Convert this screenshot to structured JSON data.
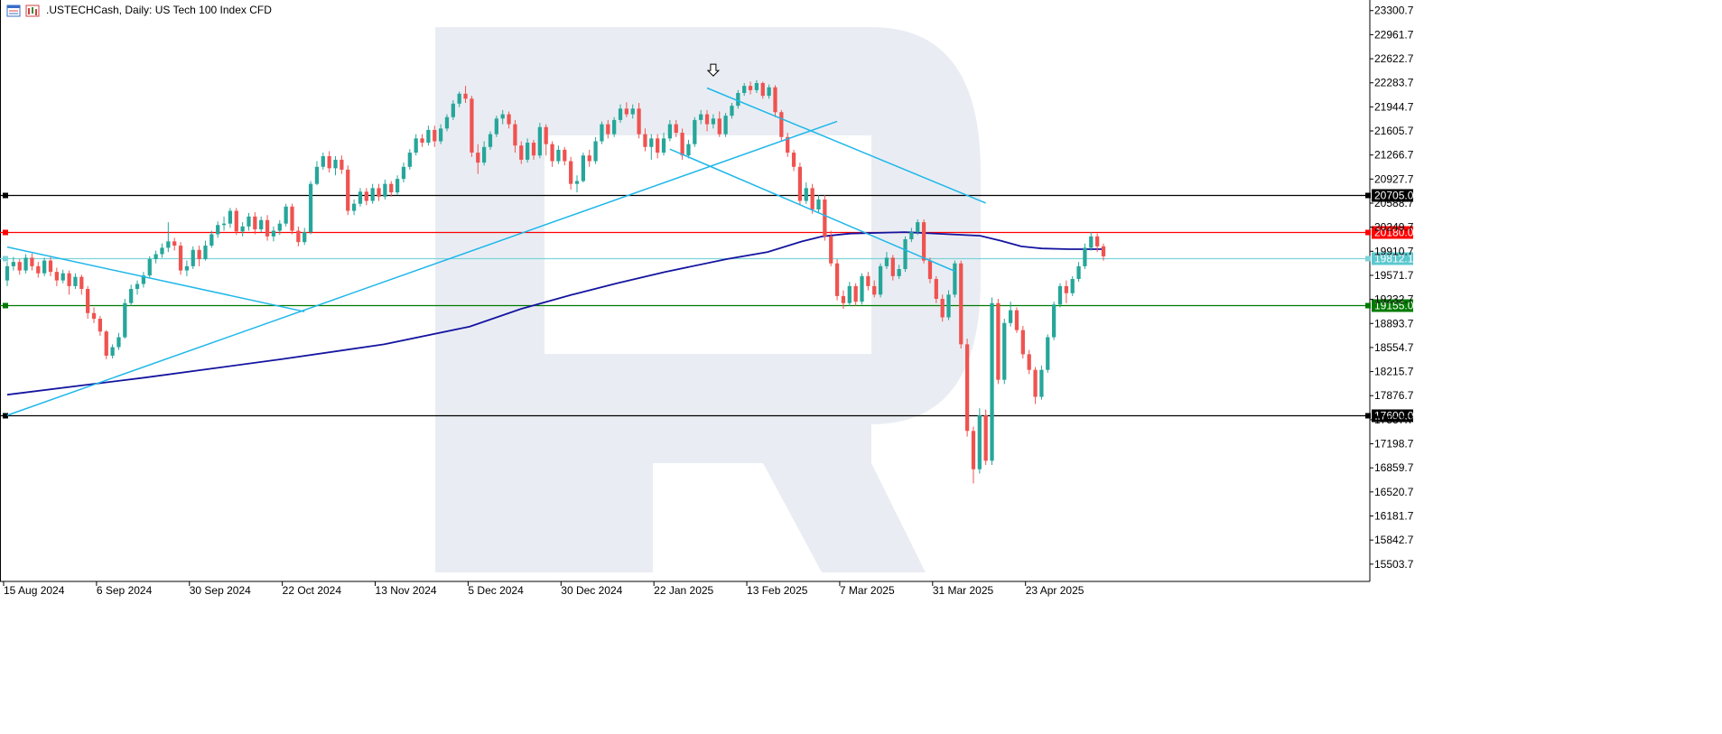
{
  "header": {
    "symbol": ".USTECHCash",
    "timeframe": "Daily",
    "title": ".USTECHCash, Daily:  US Tech 100 Index CFD",
    "icons": [
      "chart-window-icon",
      "chart-type-icon"
    ]
  },
  "chart_data": {
    "type": "candlestick",
    "y_ticks": [
      "23300.7",
      "22961.7",
      "22622.7",
      "22283.7",
      "21944.7",
      "21605.7",
      "21266.7",
      "20927.7",
      "20588.7",
      "20249.7",
      "19910.7",
      "19571.7",
      "19232.7",
      "18893.7",
      "18554.7",
      "18215.7",
      "17876.7",
      "17537.7",
      "17198.7",
      "16859.7",
      "16520.7",
      "16181.7",
      "15842.7",
      "15503.7"
    ],
    "x_ticks": [
      "15 Aug 2024",
      "6 Sep 2024",
      "30 Sep 2024",
      "22 Oct 2024",
      "13 Nov 2024",
      "5 Dec 2024",
      "30 Dec 2024",
      "22 Jan 2025",
      "13 Feb 2025",
      "7 Mar 2025",
      "31 Mar 2025",
      "23 Apr 2025"
    ],
    "ylim": [
      15260,
      23450
    ],
    "bullish_color": "#26a69a",
    "bearish_color": "#ef5350",
    "candles": [
      [
        19500,
        19700,
        19420,
        19760
      ],
      [
        19700,
        19760,
        19640,
        19830
      ],
      [
        19760,
        19640,
        19580,
        19800
      ],
      [
        19640,
        19820,
        19600,
        19870
      ],
      [
        19820,
        19700,
        19640,
        19880
      ],
      [
        19700,
        19600,
        19540,
        19760
      ],
      [
        19600,
        19780,
        19560,
        19820
      ],
      [
        19780,
        19620,
        19560,
        19830
      ],
      [
        19620,
        19500,
        19420,
        19680
      ],
      [
        19500,
        19600,
        19460,
        19650
      ],
      [
        19600,
        19420,
        19300,
        19640
      ],
      [
        19420,
        19550,
        19380,
        19600
      ],
      [
        19550,
        19380,
        19300,
        19580
      ],
      [
        19380,
        19040,
        18960,
        19420
      ],
      [
        19040,
        18960,
        18900,
        19120
      ],
      [
        18960,
        18780,
        18720,
        19000
      ],
      [
        18780,
        18440,
        18390,
        18800
      ],
      [
        18440,
        18560,
        18400,
        18600
      ],
      [
        18560,
        18700,
        18520,
        18760
      ],
      [
        18700,
        19180,
        18680,
        19240
      ],
      [
        19180,
        19380,
        19140,
        19440
      ],
      [
        19380,
        19450,
        19300,
        19500
      ],
      [
        19450,
        19570,
        19400,
        19620
      ],
      [
        19570,
        19800,
        19540,
        19840
      ],
      [
        19800,
        19870,
        19740,
        19920
      ],
      [
        19870,
        19960,
        19820,
        20020
      ],
      [
        19960,
        20050,
        19900,
        20320
      ],
      [
        20050,
        19990,
        19920,
        20100
      ],
      [
        19990,
        19640,
        19580,
        20040
      ],
      [
        19640,
        19700,
        19560,
        19780
      ],
      [
        19700,
        19930,
        19660,
        19980
      ],
      [
        19930,
        19800,
        19700,
        19990
      ],
      [
        19800,
        19990,
        19780,
        20060
      ],
      [
        19990,
        20150,
        19960,
        20200
      ],
      [
        20150,
        20280,
        20100,
        20330
      ],
      [
        20280,
        20300,
        20200,
        20400
      ],
      [
        20300,
        20480,
        20240,
        20520
      ],
      [
        20480,
        20190,
        20140,
        20520
      ],
      [
        20190,
        20260,
        20120,
        20320
      ],
      [
        20260,
        20400,
        20200,
        20450
      ],
      [
        20400,
        20220,
        20150,
        20460
      ],
      [
        20220,
        20350,
        20180,
        20400
      ],
      [
        20350,
        20120,
        20060,
        20420
      ],
      [
        20120,
        20200,
        20050,
        20260
      ],
      [
        20200,
        20300,
        20140,
        20350
      ],
      [
        20300,
        20540,
        20260,
        20580
      ],
      [
        20540,
        20200,
        20150,
        20580
      ],
      [
        20200,
        20040,
        19980,
        20260
      ],
      [
        20040,
        20180,
        20000,
        20240
      ],
      [
        20180,
        20860,
        20150,
        20900
      ],
      [
        20860,
        21100,
        20840,
        21180
      ],
      [
        21100,
        21250,
        21060,
        21300
      ],
      [
        21250,
        21080,
        21020,
        21320
      ],
      [
        21080,
        21200,
        20980,
        21250
      ],
      [
        21200,
        21060,
        21000,
        21260
      ],
      [
        21060,
        20480,
        20420,
        21120
      ],
      [
        20480,
        20580,
        20420,
        20640
      ],
      [
        20580,
        20750,
        20540,
        20800
      ],
      [
        20750,
        20620,
        20560,
        20800
      ],
      [
        20620,
        20800,
        20580,
        20860
      ],
      [
        20800,
        20680,
        20620,
        20860
      ],
      [
        20680,
        20860,
        20640,
        20920
      ],
      [
        20860,
        20740,
        20680,
        20900
      ],
      [
        20740,
        20930,
        20700,
        20980
      ],
      [
        20930,
        21100,
        20880,
        21160
      ],
      [
        21100,
        21300,
        21060,
        21350
      ],
      [
        21300,
        21500,
        21260,
        21560
      ],
      [
        21500,
        21440,
        21380,
        21560
      ],
      [
        21440,
        21620,
        21400,
        21680
      ],
      [
        21620,
        21460,
        21380,
        21680
      ],
      [
        21460,
        21640,
        21420,
        21700
      ],
      [
        21640,
        21800,
        21600,
        21840
      ],
      [
        21800,
        21990,
        21760,
        22040
      ],
      [
        21990,
        22130,
        21940,
        22160
      ],
      [
        22130,
        22060,
        22000,
        22240
      ],
      [
        22060,
        21300,
        21240,
        22100
      ],
      [
        21300,
        21160,
        21000,
        21420
      ],
      [
        21160,
        21380,
        21120,
        21460
      ],
      [
        21380,
        21560,
        21340,
        21600
      ],
      [
        21560,
        21780,
        21520,
        21820
      ],
      [
        21780,
        21840,
        21700,
        21900
      ],
      [
        21840,
        21700,
        21640,
        21880
      ],
      [
        21700,
        21400,
        21300,
        21760
      ],
      [
        21400,
        21200,
        21140,
        21460
      ],
      [
        21200,
        21440,
        21160,
        21500
      ],
      [
        21440,
        21260,
        21200,
        21480
      ],
      [
        21260,
        21660,
        21220,
        21720
      ],
      [
        21660,
        21420,
        21260,
        21700
      ],
      [
        21420,
        21180,
        21100,
        21460
      ],
      [
        21180,
        21340,
        21140,
        21400
      ],
      [
        21340,
        21180,
        21120,
        21380
      ],
      [
        21180,
        20860,
        20780,
        21240
      ],
      [
        20860,
        20900,
        20740,
        20980
      ],
      [
        20900,
        21260,
        20880,
        21300
      ],
      [
        21260,
        21180,
        21100,
        21340
      ],
      [
        21180,
        21460,
        21140,
        21520
      ],
      [
        21460,
        21700,
        21420,
        21740
      ],
      [
        21700,
        21560,
        21500,
        21760
      ],
      [
        21560,
        21760,
        21520,
        21800
      ],
      [
        21760,
        21920,
        21720,
        21980
      ],
      [
        21920,
        21840,
        21800,
        22010
      ],
      [
        21840,
        21920,
        21780,
        21980
      ],
      [
        21920,
        21560,
        21500,
        22000
      ],
      [
        21560,
        21380,
        21320,
        21640
      ],
      [
        21380,
        21500,
        21200,
        21560
      ],
      [
        21500,
        21300,
        21220,
        21560
      ],
      [
        21300,
        21500,
        21260,
        21580
      ],
      [
        21500,
        21700,
        21460,
        21760
      ],
      [
        21700,
        21580,
        21520,
        21760
      ],
      [
        21580,
        21260,
        21200,
        21640
      ],
      [
        21260,
        21420,
        21220,
        21480
      ],
      [
        21420,
        21760,
        21380,
        21800
      ],
      [
        21760,
        21840,
        21700,
        21900
      ],
      [
        21840,
        21700,
        21600,
        21900
      ],
      [
        21700,
        21780,
        21640,
        21840
      ],
      [
        21780,
        21560,
        21520,
        21880
      ],
      [
        21560,
        21820,
        21520,
        21860
      ],
      [
        21820,
        21960,
        21780,
        22000
      ],
      [
        21960,
        22140,
        21920,
        22180
      ],
      [
        22140,
        22240,
        22100,
        22280
      ],
      [
        22240,
        22180,
        22120,
        22300
      ],
      [
        22180,
        22280,
        22140,
        22320
      ],
      [
        22280,
        22100,
        22060,
        22300
      ],
      [
        22100,
        22220,
        22060,
        22260
      ],
      [
        22220,
        21870,
        21800,
        22250
      ],
      [
        21870,
        21520,
        21460,
        21900
      ],
      [
        21520,
        21300,
        21240,
        21580
      ],
      [
        21300,
        21100,
        21040,
        21340
      ],
      [
        21100,
        20620,
        20560,
        21160
      ],
      [
        20620,
        20800,
        20580,
        20880
      ],
      [
        20800,
        20500,
        20440,
        20860
      ],
      [
        20500,
        20640,
        20460,
        20700
      ],
      [
        20640,
        20120,
        20060,
        20700
      ],
      [
        20120,
        19740,
        19700,
        20200
      ],
      [
        19740,
        19280,
        19220,
        19800
      ],
      [
        19280,
        19180,
        19100,
        19360
      ],
      [
        19180,
        19420,
        19140,
        19480
      ],
      [
        19420,
        19200,
        19140,
        19460
      ],
      [
        19200,
        19560,
        19160,
        19600
      ],
      [
        19560,
        19420,
        19360,
        19620
      ],
      [
        19420,
        19300,
        19260,
        19500
      ],
      [
        19300,
        19700,
        19260,
        19740
      ],
      [
        19700,
        19820,
        19660,
        19900
      ],
      [
        19820,
        19560,
        19500,
        19860
      ],
      [
        19560,
        19660,
        19520,
        19720
      ],
      [
        19660,
        20080,
        19620,
        20120
      ],
      [
        20080,
        20180,
        20040,
        20240
      ],
      [
        20180,
        20320,
        20140,
        20360
      ],
      [
        20320,
        19780,
        19740,
        20360
      ],
      [
        19780,
        19520,
        19460,
        19820
      ],
      [
        19520,
        19240,
        19180,
        19560
      ],
      [
        19240,
        18980,
        18920,
        19300
      ],
      [
        18980,
        19300,
        18940,
        19360
      ],
      [
        19300,
        19740,
        19260,
        19780
      ],
      [
        19740,
        18600,
        18540,
        19780
      ],
      [
        18600,
        17380,
        17300,
        18680
      ],
      [
        17380,
        16840,
        16640,
        17440
      ],
      [
        16840,
        17600,
        16780,
        17700
      ],
      [
        17600,
        16960,
        16900,
        17680
      ],
      [
        16960,
        19180,
        16900,
        19260
      ],
      [
        19180,
        18100,
        18040,
        19240
      ],
      [
        18100,
        18900,
        18040,
        18960
      ],
      [
        18900,
        19080,
        18850,
        19200
      ],
      [
        19080,
        18800,
        18760,
        19120
      ],
      [
        18800,
        18460,
        18400,
        18860
      ],
      [
        18460,
        18240,
        18180,
        18520
      ],
      [
        18240,
        17860,
        17760,
        18280
      ],
      [
        17860,
        18240,
        17820,
        18300
      ],
      [
        18240,
        18700,
        18200,
        18740
      ],
      [
        18700,
        19160,
        18660,
        19200
      ],
      [
        19160,
        19420,
        19120,
        19460
      ],
      [
        19420,
        19320,
        19180,
        19500
      ],
      [
        19320,
        19520,
        19280,
        19560
      ],
      [
        19520,
        19700,
        19480,
        19760
      ],
      [
        19700,
        19960,
        19660,
        20020
      ],
      [
        19960,
        20120,
        19920,
        20180
      ],
      [
        20120,
        19980,
        19900,
        20160
      ],
      [
        19980,
        19840,
        19780,
        20020
      ]
    ],
    "sma_line": [
      [
        0,
        17890
      ],
      [
        40,
        18130
      ],
      [
        80,
        18390
      ],
      [
        110,
        18600
      ],
      [
        135,
        18850
      ],
      [
        150,
        19100
      ],
      [
        165,
        19300
      ],
      [
        178,
        19460
      ],
      [
        192,
        19620
      ],
      [
        210,
        19800
      ],
      [
        222,
        19900
      ],
      [
        232,
        20050
      ],
      [
        238,
        20120
      ],
      [
        246,
        20160
      ],
      [
        262,
        20180
      ],
      [
        284,
        20130
      ],
      [
        290,
        20060
      ],
      [
        296,
        19980
      ],
      [
        302,
        19950
      ],
      [
        310,
        19940
      ],
      [
        320,
        19940
      ]
    ],
    "horizontal_levels": [
      {
        "label": "20705.0",
        "value": 20705.0,
        "color": "#000000",
        "box_bg": "#000000",
        "text_color": "#ffffff"
      },
      {
        "label": "20180.0",
        "value": 20180.0,
        "color": "#ff0000",
        "box_bg": "#ff0000",
        "text_color": "#ffffff"
      },
      {
        "label": "19812.1",
        "value": 19812.1,
        "color": "#7dd3d8",
        "box_bg": "#5bc8cf",
        "text_color": "#ffffff"
      },
      {
        "label": "19155.0",
        "value": 19155.0,
        "color": "#007a00",
        "box_bg": "#007a00",
        "text_color": "#ffffff"
      },
      {
        "label": "17600.0",
        "value": 17600.0,
        "color": "#000000",
        "box_bg": "#000000",
        "text_color": "#ffffff"
      }
    ],
    "trend_lines": [
      {
        "name": "upper-trendline-1",
        "from": [
          0,
          19970
        ],
        "to": [
          48,
          19060
        ],
        "color": "#1fb7ea"
      },
      {
        "name": "rising-support",
        "from": [
          0,
          17600
        ],
        "to": [
          134,
          21740
        ],
        "color": "#1fb7ea"
      },
      {
        "name": "descending-channel-top",
        "from": [
          113,
          22210
        ],
        "to": [
          158,
          20590
        ],
        "color": "#1fb7ea"
      },
      {
        "name": "descending-channel-bottom",
        "from": [
          107,
          21350
        ],
        "to": [
          153,
          19630
        ],
        "color": "#1fb7ea"
      }
    ],
    "marker": {
      "name": "down-arrow-marker",
      "index": 114,
      "value": 22380
    }
  }
}
